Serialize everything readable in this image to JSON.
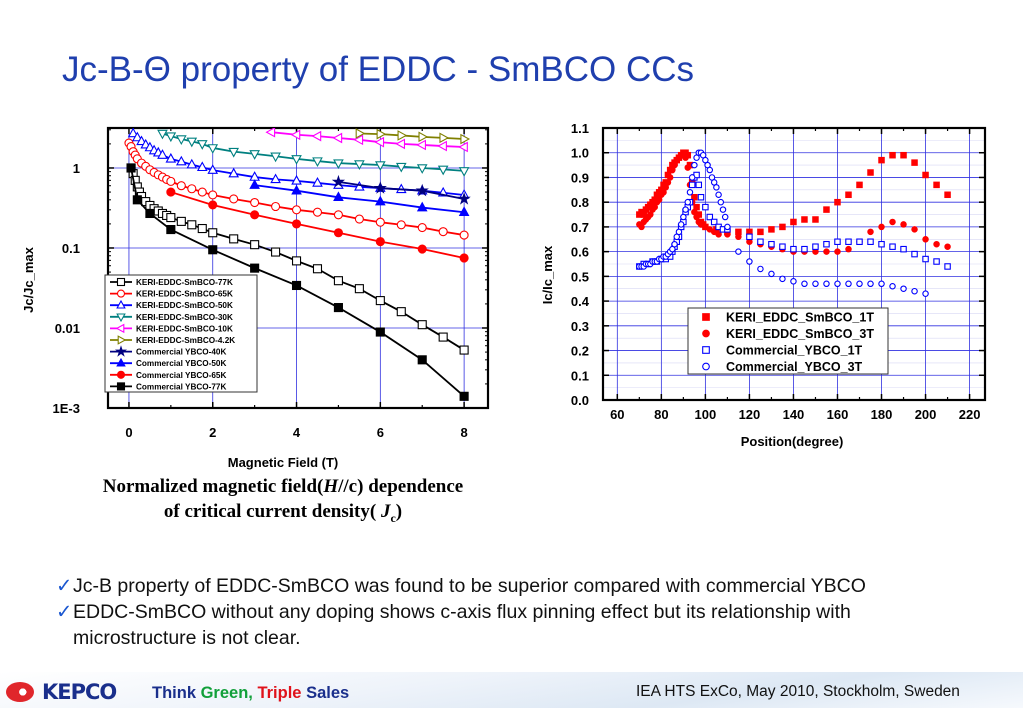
{
  "title": "Jc-B-Θ property of EDDC - SmBCO CCs",
  "caption": {
    "line1_a": "Normalized magnetic field(",
    "line1_h": "H",
    "line1_b": "//c) dependence",
    "line2_a": "of critical current density( ",
    "line2_j": "J",
    "line2_sub": "c",
    "line2_b": ")"
  },
  "bullets": [
    {
      "check": "✓",
      "text": "Jc-B property of EDDC-SmBCO was found to be superior compared with commercial YBCO"
    },
    {
      "check": "✓",
      "text": "EDDC-SmBCO without any doping shows c-axis flux pinning effect but its relationship with microstructure is not clear."
    }
  ],
  "footer": {
    "logo": "KEPCO",
    "slogan_think": "Think ",
    "slogan_green": "Green,",
    "slogan_triple": " Triple",
    "slogan_sales": " Sales",
    "conference": "IEA HTS ExCo, May 2010, Stockholm, Sweden"
  },
  "chart_data": [
    {
      "type": "line",
      "xlabel": "Magnetic Field (T)",
      "ylabel": "Jc/Jc_max",
      "yscale": "log",
      "xlim": [
        -0.5,
        8.57
      ],
      "ylim": [
        0.001,
        3.16
      ],
      "xticks": [
        {
          "v": 0,
          "label": "0"
        },
        {
          "v": 2,
          "label": "2"
        },
        {
          "v": 4,
          "label": "4"
        },
        {
          "v": 6,
          "label": "6"
        },
        {
          "v": 8,
          "label": "8"
        }
      ],
      "yticks": [
        {
          "v": 1,
          "label": "1"
        },
        {
          "v": 0.1,
          "label": "0.1"
        },
        {
          "v": 0.01,
          "label": "0.01"
        },
        {
          "v": 0.001,
          "label": "1E-3"
        }
      ],
      "grid": true,
      "legend_position": "bottom-left",
      "series": [
        {
          "name": "KERI-EDDC-SmBCO-77K",
          "color": "#000000",
          "marker": "square",
          "filled": false,
          "x": [
            0.05,
            0.1,
            0.15,
            0.2,
            0.25,
            0.3,
            0.4,
            0.5,
            0.6,
            0.7,
            0.8,
            0.9,
            1,
            1.25,
            1.5,
            1.75,
            2,
            2.5,
            3,
            3.5,
            4,
            4.5,
            5,
            5.5,
            6,
            6.5,
            7,
            7.5,
            8
          ],
          "y": [
            1.0,
            0.85,
            0.7,
            0.58,
            0.5,
            0.44,
            0.38,
            0.34,
            0.31,
            0.29,
            0.27,
            0.255,
            0.24,
            0.215,
            0.195,
            0.175,
            0.155,
            0.13,
            0.11,
            0.089,
            0.069,
            0.055,
            0.039,
            0.031,
            0.022,
            0.016,
            0.011,
            0.0077,
            0.0053
          ]
        },
        {
          "name": "KERI-EDDC-SmBCO-65K",
          "color": "#ff0000",
          "marker": "circle",
          "filled": false,
          "x": [
            0,
            0.05,
            0.1,
            0.15,
            0.2,
            0.3,
            0.4,
            0.5,
            0.6,
            0.7,
            0.8,
            0.9,
            1,
            1.25,
            1.5,
            1.75,
            2,
            2.5,
            3,
            3.5,
            4,
            4.5,
            5,
            5.5,
            6,
            6.5,
            7,
            7.5,
            8
          ],
          "y": [
            2.05,
            1.85,
            1.6,
            1.45,
            1.3,
            1.15,
            1.05,
            0.95,
            0.88,
            0.82,
            0.77,
            0.72,
            0.68,
            0.6,
            0.55,
            0.5,
            0.46,
            0.41,
            0.37,
            0.33,
            0.3,
            0.28,
            0.26,
            0.23,
            0.21,
            0.195,
            0.18,
            0.16,
            0.145
          ]
        },
        {
          "name": "KERI-EDDC-SmBCO-50K",
          "color": "#0000ff",
          "marker": "triangle-up",
          "filled": false,
          "x": [
            0.1,
            0.2,
            0.3,
            0.4,
            0.5,
            0.6,
            0.7,
            0.8,
            1,
            1.25,
            1.5,
            1.75,
            2,
            2.5,
            3,
            3.5,
            4,
            4.5,
            5,
            5.5,
            6,
            6.5,
            7,
            7.5,
            8
          ],
          "y": [
            2.7,
            2.4,
            2.15,
            1.95,
            1.8,
            1.65,
            1.55,
            1.45,
            1.3,
            1.2,
            1.1,
            1.02,
            0.94,
            0.85,
            0.77,
            0.72,
            0.69,
            0.65,
            0.61,
            0.58,
            0.56,
            0.54,
            0.52,
            0.49,
            0.46
          ]
        },
        {
          "name": "KERI-EDDC-SmBCO-30K",
          "color": "#008080",
          "marker": "triangle-down",
          "filled": false,
          "x": [
            0.8,
            1,
            1.25,
            1.5,
            1.75,
            2,
            2.5,
            3,
            3.5,
            4,
            4.5,
            5,
            5.5,
            6,
            6.5,
            7,
            7.5,
            8
          ],
          "y": [
            2.7,
            2.5,
            2.3,
            2.15,
            2.0,
            1.78,
            1.6,
            1.5,
            1.4,
            1.3,
            1.22,
            1.15,
            1.12,
            1.09,
            1.04,
            1.0,
            0.96,
            0.92
          ]
        },
        {
          "name": "KERI-EDDC-SmBCO-10K",
          "color": "#ff00ff",
          "marker": "triangle-left",
          "filled": false,
          "x": [
            3.4,
            4,
            4.5,
            5,
            5.5,
            6,
            6.5,
            7,
            7.5,
            8
          ],
          "y": [
            2.8,
            2.6,
            2.5,
            2.37,
            2.25,
            2.1,
            2.0,
            1.94,
            1.88,
            1.83
          ]
        },
        {
          "name": "KERI-EDDC-SmBCO-4.2K",
          "color": "#808000",
          "marker": "triangle-right",
          "filled": false,
          "x": [
            5.5,
            6,
            6.5,
            7,
            7.5,
            8
          ],
          "y": [
            2.7,
            2.65,
            2.55,
            2.45,
            2.38,
            2.3
          ]
        },
        {
          "name": "Commercial YBCO-40K",
          "color": "#000080",
          "marker": "star",
          "filled": true,
          "x": [
            5,
            6,
            7,
            8
          ],
          "y": [
            0.67,
            0.56,
            0.52,
            0.41
          ]
        },
        {
          "name": "Commercial YBCO-50K",
          "color": "#0000ff",
          "marker": "triangle-up",
          "filled": true,
          "x": [
            3,
            4,
            5,
            6,
            7,
            8
          ],
          "y": [
            0.61,
            0.52,
            0.43,
            0.38,
            0.32,
            0.28
          ]
        },
        {
          "name": "Commercial YBCO-65K",
          "color": "#ff0000",
          "marker": "circle",
          "filled": true,
          "x": [
            1,
            2,
            3,
            4,
            5,
            6,
            7,
            8
          ],
          "y": [
            0.5,
            0.345,
            0.26,
            0.2,
            0.155,
            0.12,
            0.097,
            0.075
          ]
        },
        {
          "name": "Commercial YBCO-77K",
          "color": "#000000",
          "marker": "square",
          "filled": true,
          "x": [
            0.05,
            0.2,
            0.5,
            1,
            2,
            3,
            4,
            5,
            6,
            7,
            8
          ],
          "y": [
            1.0,
            0.4,
            0.27,
            0.17,
            0.095,
            0.056,
            0.034,
            0.018,
            0.0089,
            0.004,
            0.0014
          ]
        }
      ]
    },
    {
      "type": "scatter",
      "xlabel": "Position(degree)",
      "ylabel": "Ic/Ic_max",
      "xlim": [
        53.5,
        227
      ],
      "ylim": [
        0,
        1.1
      ],
      "xticks": [
        {
          "v": 60,
          "label": "60"
        },
        {
          "v": 80,
          "label": "80"
        },
        {
          "v": 100,
          "label": "100"
        },
        {
          "v": 120,
          "label": "120"
        },
        {
          "v": 140,
          "label": "140"
        },
        {
          "v": 160,
          "label": "160"
        },
        {
          "v": 180,
          "label": "180"
        },
        {
          "v": 200,
          "label": "200"
        },
        {
          "v": 220,
          "label": "220"
        }
      ],
      "yticks": [
        {
          "v": 0,
          "label": "0.0"
        },
        {
          "v": 0.1,
          "label": "0.1"
        },
        {
          "v": 0.2,
          "label": "0.2"
        },
        {
          "v": 0.3,
          "label": "0.3"
        },
        {
          "v": 0.4,
          "label": "0.4"
        },
        {
          "v": 0.5,
          "label": "0.5"
        },
        {
          "v": 0.6,
          "label": "0.6"
        },
        {
          "v": 0.7,
          "label": "0.7"
        },
        {
          "v": 0.8,
          "label": "0.8"
        },
        {
          "v": 0.9,
          "label": "0.9"
        },
        {
          "v": 1.0,
          "label": "1.0"
        },
        {
          "v": 1.1,
          "label": "1.1"
        }
      ],
      "grid": true,
      "legend_position": "bottom-center",
      "series": [
        {
          "name": "KERI_EDDC_SmBCO_1T",
          "color": "#ff0000",
          "marker": "square",
          "filled": true,
          "x": [
            70,
            71,
            72,
            73,
            74,
            75,
            76,
            77,
            78,
            79,
            80,
            81,
            82,
            83,
            84,
            85,
            86,
            87,
            88,
            89,
            90,
            91,
            92,
            93,
            94,
            95,
            96,
            97,
            98,
            99,
            100,
            105,
            110,
            115,
            120,
            125,
            130,
            135,
            140,
            145,
            150,
            155,
            160,
            165,
            170,
            175,
            180,
            185,
            190,
            195,
            200,
            205,
            210
          ],
          "y": [
            0.75,
            0.76,
            0.75,
            0.77,
            0.78,
            0.79,
            0.8,
            0.81,
            0.83,
            0.84,
            0.85,
            0.87,
            0.88,
            0.91,
            0.93,
            0.95,
            0.96,
            0.97,
            0.98,
            0.99,
            1.0,
            1.0,
            0.99,
            0.95,
            0.88,
            0.82,
            0.78,
            0.75,
            0.72,
            0.71,
            0.7,
            0.69,
            0.68,
            0.68,
            0.68,
            0.68,
            0.69,
            0.7,
            0.72,
            0.73,
            0.73,
            0.77,
            0.8,
            0.83,
            0.87,
            0.92,
            0.97,
            0.99,
            0.99,
            0.96,
            0.91,
            0.87,
            0.83
          ]
        },
        {
          "name": "KERI_EDDC_SmBCO_3T",
          "color": "#ff0000",
          "marker": "circle",
          "filled": true,
          "x": [
            70,
            71,
            72,
            73,
            74,
            75,
            76,
            77,
            78,
            79,
            80,
            81,
            82,
            83,
            84,
            85,
            86,
            87,
            88,
            89,
            90,
            91,
            92,
            93,
            94,
            95,
            96,
            97,
            98,
            100,
            102,
            104,
            106,
            110,
            115,
            120,
            125,
            130,
            135,
            140,
            145,
            150,
            155,
            160,
            165,
            170,
            175,
            180,
            185,
            190,
            195,
            200,
            205,
            210
          ],
          "y": [
            0.71,
            0.7,
            0.72,
            0.73,
            0.74,
            0.75,
            0.77,
            0.78,
            0.8,
            0.81,
            0.83,
            0.84,
            0.86,
            0.88,
            0.9,
            0.93,
            0.95,
            0.97,
            0.98,
            0.99,
            0.99,
            0.98,
            0.94,
            0.87,
            0.8,
            0.76,
            0.74,
            0.72,
            0.71,
            0.7,
            0.69,
            0.68,
            0.67,
            0.67,
            0.66,
            0.64,
            0.63,
            0.62,
            0.61,
            0.6,
            0.6,
            0.6,
            0.6,
            0.6,
            0.61,
            0.64,
            0.68,
            0.7,
            0.72,
            0.71,
            0.69,
            0.65,
            0.63,
            0.62
          ]
        },
        {
          "name": "Commercial_YBCO_1T",
          "color": "#0000ff",
          "marker": "square",
          "filled": false,
          "x": [
            70,
            72,
            74,
            76,
            78,
            80,
            82,
            84,
            85,
            86,
            87,
            88,
            89,
            90,
            91,
            92,
            93,
            94,
            95,
            96,
            97,
            98,
            100,
            102,
            104,
            106,
            108,
            110,
            120,
            125,
            130,
            135,
            140,
            145,
            150,
            155,
            160,
            165,
            170,
            175,
            180,
            185,
            190,
            195,
            200,
            205,
            210
          ],
          "y": [
            0.54,
            0.55,
            0.55,
            0.56,
            0.56,
            0.57,
            0.57,
            0.58,
            0.6,
            0.62,
            0.64,
            0.66,
            0.7,
            0.72,
            0.76,
            0.78,
            0.8,
            0.87,
            0.9,
            0.91,
            0.87,
            0.82,
            0.78,
            0.74,
            0.72,
            0.7,
            0.69,
            0.69,
            0.66,
            0.64,
            0.63,
            0.62,
            0.61,
            0.61,
            0.62,
            0.63,
            0.64,
            0.64,
            0.64,
            0.64,
            0.63,
            0.62,
            0.61,
            0.59,
            0.57,
            0.56,
            0.54
          ]
        },
        {
          "name": "Commercial_YBCO_3T",
          "color": "#0000ff",
          "marker": "circle",
          "filled": false,
          "x": [
            70,
            71,
            72,
            73,
            74,
            75,
            76,
            77,
            78,
            79,
            80,
            81,
            82,
            83,
            84,
            85,
            86,
            87,
            88,
            89,
            90,
            91,
            92,
            93,
            94,
            95,
            96,
            97,
            98,
            99,
            100,
            101,
            102,
            103,
            104,
            105,
            106,
            107,
            108,
            109,
            110,
            115,
            120,
            125,
            130,
            135,
            140,
            145,
            150,
            155,
            160,
            165,
            170,
            175,
            180,
            185,
            190,
            195,
            200
          ],
          "y": [
            0.54,
            0.54,
            0.54,
            0.55,
            0.55,
            0.55,
            0.56,
            0.56,
            0.56,
            0.57,
            0.57,
            0.58,
            0.58,
            0.59,
            0.6,
            0.61,
            0.63,
            0.66,
            0.68,
            0.71,
            0.74,
            0.77,
            0.8,
            0.84,
            0.9,
            0.95,
            0.98,
            1.0,
            1.0,
            0.99,
            0.97,
            0.95,
            0.93,
            0.9,
            0.88,
            0.86,
            0.83,
            0.8,
            0.77,
            0.74,
            0.7,
            0.6,
            0.56,
            0.53,
            0.51,
            0.49,
            0.48,
            0.47,
            0.47,
            0.47,
            0.47,
            0.47,
            0.47,
            0.47,
            0.47,
            0.46,
            0.45,
            0.44,
            0.43
          ]
        }
      ]
    }
  ]
}
